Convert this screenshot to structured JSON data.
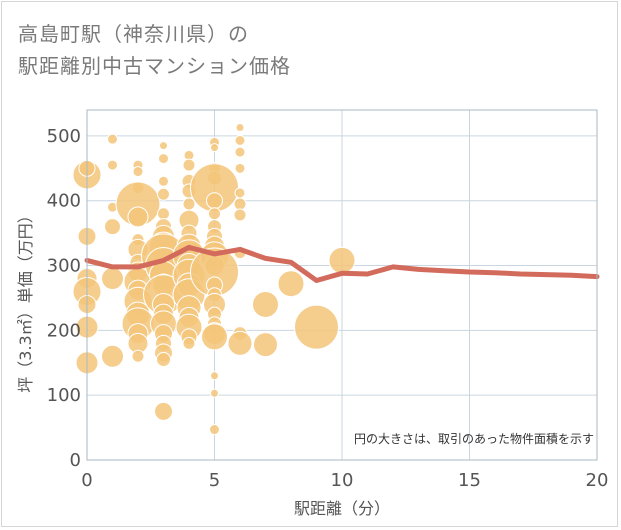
{
  "title": {
    "line1": "高島町駅（神奈川県）の",
    "line2": "駅距離別中古マンション価格"
  },
  "note": "円の大きさは、取引のあった物件面積を示す",
  "colors": {
    "bubble_fill": "#f3c57a",
    "bubble_stroke": "#ffffff",
    "trend_line": "#d36b5d",
    "grid": "#c9d6e0",
    "plot_border": "#a9b8c4"
  },
  "chart_data": {
    "type": "scatter",
    "xlabel": "駅距離（分）",
    "ylabel": "坪（3.3㎡）単価（万円）",
    "xlim": [
      0,
      20
    ],
    "ylim": [
      0,
      540
    ],
    "x_ticks": [
      0,
      5,
      10,
      15,
      20
    ],
    "y_ticks": [
      0,
      100,
      200,
      300,
      400,
      500
    ],
    "grid": true,
    "bubbles": [
      {
        "x": 0,
        "y": 440,
        "r": 14
      },
      {
        "x": 0,
        "y": 450,
        "r": 8
      },
      {
        "x": 0,
        "y": 345,
        "r": 9
      },
      {
        "x": 0,
        "y": 280,
        "r": 10
      },
      {
        "x": 0,
        "y": 260,
        "r": 14
      },
      {
        "x": 0,
        "y": 240,
        "r": 9
      },
      {
        "x": 0,
        "y": 205,
        "r": 11
      },
      {
        "x": 0,
        "y": 150,
        "r": 11
      },
      {
        "x": 1,
        "y": 495,
        "r": 5
      },
      {
        "x": 1,
        "y": 455,
        "r": 5
      },
      {
        "x": 1,
        "y": 390,
        "r": 5
      },
      {
        "x": 1,
        "y": 360,
        "r": 8
      },
      {
        "x": 1,
        "y": 280,
        "r": 11
      },
      {
        "x": 1,
        "y": 160,
        "r": 11
      },
      {
        "x": 2,
        "y": 455,
        "r": 5
      },
      {
        "x": 2,
        "y": 445,
        "r": 5
      },
      {
        "x": 2,
        "y": 420,
        "r": 6
      },
      {
        "x": 2,
        "y": 395,
        "r": 22
      },
      {
        "x": 2,
        "y": 375,
        "r": 10
      },
      {
        "x": 2,
        "y": 340,
        "r": 6
      },
      {
        "x": 2,
        "y": 325,
        "r": 10
      },
      {
        "x": 2,
        "y": 305,
        "r": 8
      },
      {
        "x": 2,
        "y": 290,
        "r": 10
      },
      {
        "x": 2,
        "y": 275,
        "r": 14
      },
      {
        "x": 2,
        "y": 262,
        "r": 10
      },
      {
        "x": 2,
        "y": 245,
        "r": 14
      },
      {
        "x": 2,
        "y": 225,
        "r": 12
      },
      {
        "x": 2,
        "y": 210,
        "r": 16
      },
      {
        "x": 2,
        "y": 195,
        "r": 10
      },
      {
        "x": 2,
        "y": 180,
        "r": 10
      },
      {
        "x": 2,
        "y": 160,
        "r": 6
      },
      {
        "x": 3,
        "y": 485,
        "r": 4
      },
      {
        "x": 3,
        "y": 465,
        "r": 5
      },
      {
        "x": 3,
        "y": 430,
        "r": 5
      },
      {
        "x": 3,
        "y": 410,
        "r": 6
      },
      {
        "x": 3,
        "y": 380,
        "r": 6
      },
      {
        "x": 3,
        "y": 360,
        "r": 8
      },
      {
        "x": 3,
        "y": 345,
        "r": 11
      },
      {
        "x": 3,
        "y": 330,
        "r": 14
      },
      {
        "x": 3,
        "y": 315,
        "r": 22
      },
      {
        "x": 3,
        "y": 300,
        "r": 18
      },
      {
        "x": 3,
        "y": 285,
        "r": 14
      },
      {
        "x": 3,
        "y": 270,
        "r": 11
      },
      {
        "x": 3,
        "y": 255,
        "r": 20
      },
      {
        "x": 3,
        "y": 240,
        "r": 11
      },
      {
        "x": 3,
        "y": 225,
        "r": 10
      },
      {
        "x": 3,
        "y": 210,
        "r": 13
      },
      {
        "x": 3,
        "y": 195,
        "r": 9
      },
      {
        "x": 3,
        "y": 180,
        "r": 8
      },
      {
        "x": 3,
        "y": 165,
        "r": 9
      },
      {
        "x": 3,
        "y": 155,
        "r": 7
      },
      {
        "x": 3,
        "y": 75,
        "r": 9
      },
      {
        "x": 4,
        "y": 470,
        "r": 5
      },
      {
        "x": 4,
        "y": 455,
        "r": 6
      },
      {
        "x": 4,
        "y": 430,
        "r": 7
      },
      {
        "x": 4,
        "y": 415,
        "r": 7
      },
      {
        "x": 4,
        "y": 395,
        "r": 6
      },
      {
        "x": 4,
        "y": 370,
        "r": 10
      },
      {
        "x": 4,
        "y": 350,
        "r": 8
      },
      {
        "x": 4,
        "y": 330,
        "r": 12
      },
      {
        "x": 4,
        "y": 315,
        "r": 16
      },
      {
        "x": 4,
        "y": 300,
        "r": 12
      },
      {
        "x": 4,
        "y": 285,
        "r": 16
      },
      {
        "x": 4,
        "y": 270,
        "r": 12
      },
      {
        "x": 4,
        "y": 255,
        "r": 16
      },
      {
        "x": 4,
        "y": 235,
        "r": 12
      },
      {
        "x": 4,
        "y": 220,
        "r": 10
      },
      {
        "x": 4,
        "y": 205,
        "r": 13
      },
      {
        "x": 4,
        "y": 190,
        "r": 8
      },
      {
        "x": 4,
        "y": 180,
        "r": 6
      },
      {
        "x": 5,
        "y": 490,
        "r": 5
      },
      {
        "x": 5,
        "y": 482,
        "r": 4
      },
      {
        "x": 5,
        "y": 450,
        "r": 6
      },
      {
        "x": 5,
        "y": 435,
        "r": 7
      },
      {
        "x": 5,
        "y": 420,
        "r": 24
      },
      {
        "x": 5,
        "y": 400,
        "r": 8
      },
      {
        "x": 5,
        "y": 380,
        "r": 6
      },
      {
        "x": 5,
        "y": 360,
        "r": 7
      },
      {
        "x": 5,
        "y": 345,
        "r": 8
      },
      {
        "x": 5,
        "y": 330,
        "r": 10
      },
      {
        "x": 5,
        "y": 315,
        "r": 14
      },
      {
        "x": 5,
        "y": 300,
        "r": 10
      },
      {
        "x": 5,
        "y": 290,
        "r": 24
      },
      {
        "x": 5,
        "y": 270,
        "r": 8
      },
      {
        "x": 5,
        "y": 255,
        "r": 7
      },
      {
        "x": 5,
        "y": 240,
        "r": 11
      },
      {
        "x": 5,
        "y": 225,
        "r": 7
      },
      {
        "x": 5,
        "y": 210,
        "r": 7
      },
      {
        "x": 5,
        "y": 195,
        "r": 11
      },
      {
        "x": 5,
        "y": 190,
        "r": 13
      },
      {
        "x": 5,
        "y": 130,
        "r": 4
      },
      {
        "x": 5,
        "y": 103,
        "r": 4
      },
      {
        "x": 5,
        "y": 47,
        "r": 5
      },
      {
        "x": 6,
        "y": 513,
        "r": 4
      },
      {
        "x": 6,
        "y": 493,
        "r": 5
      },
      {
        "x": 6,
        "y": 475,
        "r": 5
      },
      {
        "x": 6,
        "y": 450,
        "r": 5
      },
      {
        "x": 6,
        "y": 412,
        "r": 5
      },
      {
        "x": 6,
        "y": 395,
        "r": 6
      },
      {
        "x": 6,
        "y": 378,
        "r": 6
      },
      {
        "x": 6,
        "y": 320,
        "r": 6
      },
      {
        "x": 6,
        "y": 195,
        "r": 7
      },
      {
        "x": 6,
        "y": 180,
        "r": 12
      },
      {
        "x": 7,
        "y": 240,
        "r": 13
      },
      {
        "x": 7,
        "y": 178,
        "r": 12
      },
      {
        "x": 8,
        "y": 272,
        "r": 13
      },
      {
        "x": 9,
        "y": 205,
        "r": 22
      },
      {
        "x": 10,
        "y": 308,
        "r": 13
      }
    ],
    "trend": {
      "x": [
        0,
        1,
        2,
        3,
        4,
        5,
        6,
        7,
        8,
        9,
        10,
        11,
        12,
        13,
        14,
        15,
        16,
        17,
        18,
        19,
        20
      ],
      "y": [
        308,
        298,
        298,
        308,
        328,
        318,
        325,
        311,
        305,
        277,
        288,
        287,
        298,
        294,
        292,
        290,
        289,
        287,
        286,
        285,
        283
      ]
    }
  }
}
